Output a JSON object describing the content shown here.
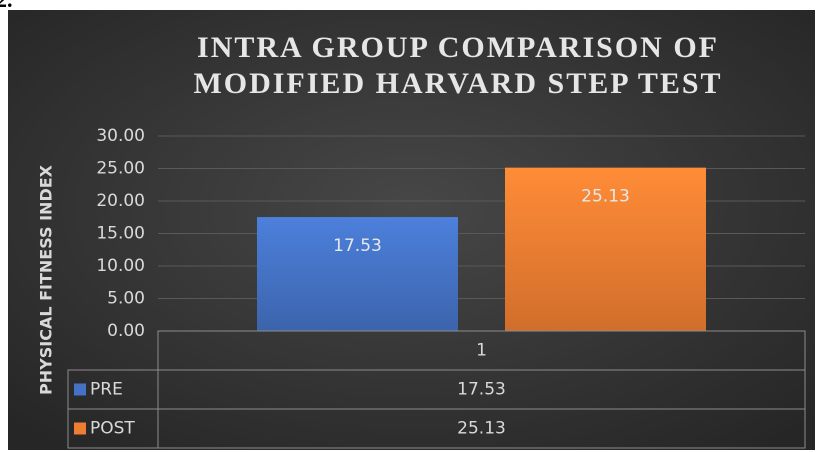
{
  "figure_label": "2.",
  "chart_data": {
    "type": "bar",
    "title": [
      "INTRA GROUP COMPARISON OF",
      "MODIFIED HARVARD STEP TEST"
    ],
    "y_label": "PHYSICAL FITNESS INDEX",
    "categories": [
      "1"
    ],
    "series": [
      {
        "name": "PRE",
        "color": "#4472c4",
        "values": [
          17.53
        ]
      },
      {
        "name": "POST",
        "color": "#ed7d31",
        "values": [
          25.13
        ]
      }
    ],
    "ylim": [
      0,
      30
    ],
    "yticks": [
      {
        "value": 0,
        "label": "0.00"
      },
      {
        "value": 5,
        "label": "5.00"
      },
      {
        "value": 10,
        "label": "10.00"
      },
      {
        "value": 15,
        "label": "15.00"
      },
      {
        "value": 20,
        "label": "20.00"
      },
      {
        "value": 25,
        "label": "25.00"
      },
      {
        "value": 30,
        "label": "30.00"
      }
    ],
    "grid": true,
    "data_table": true
  }
}
